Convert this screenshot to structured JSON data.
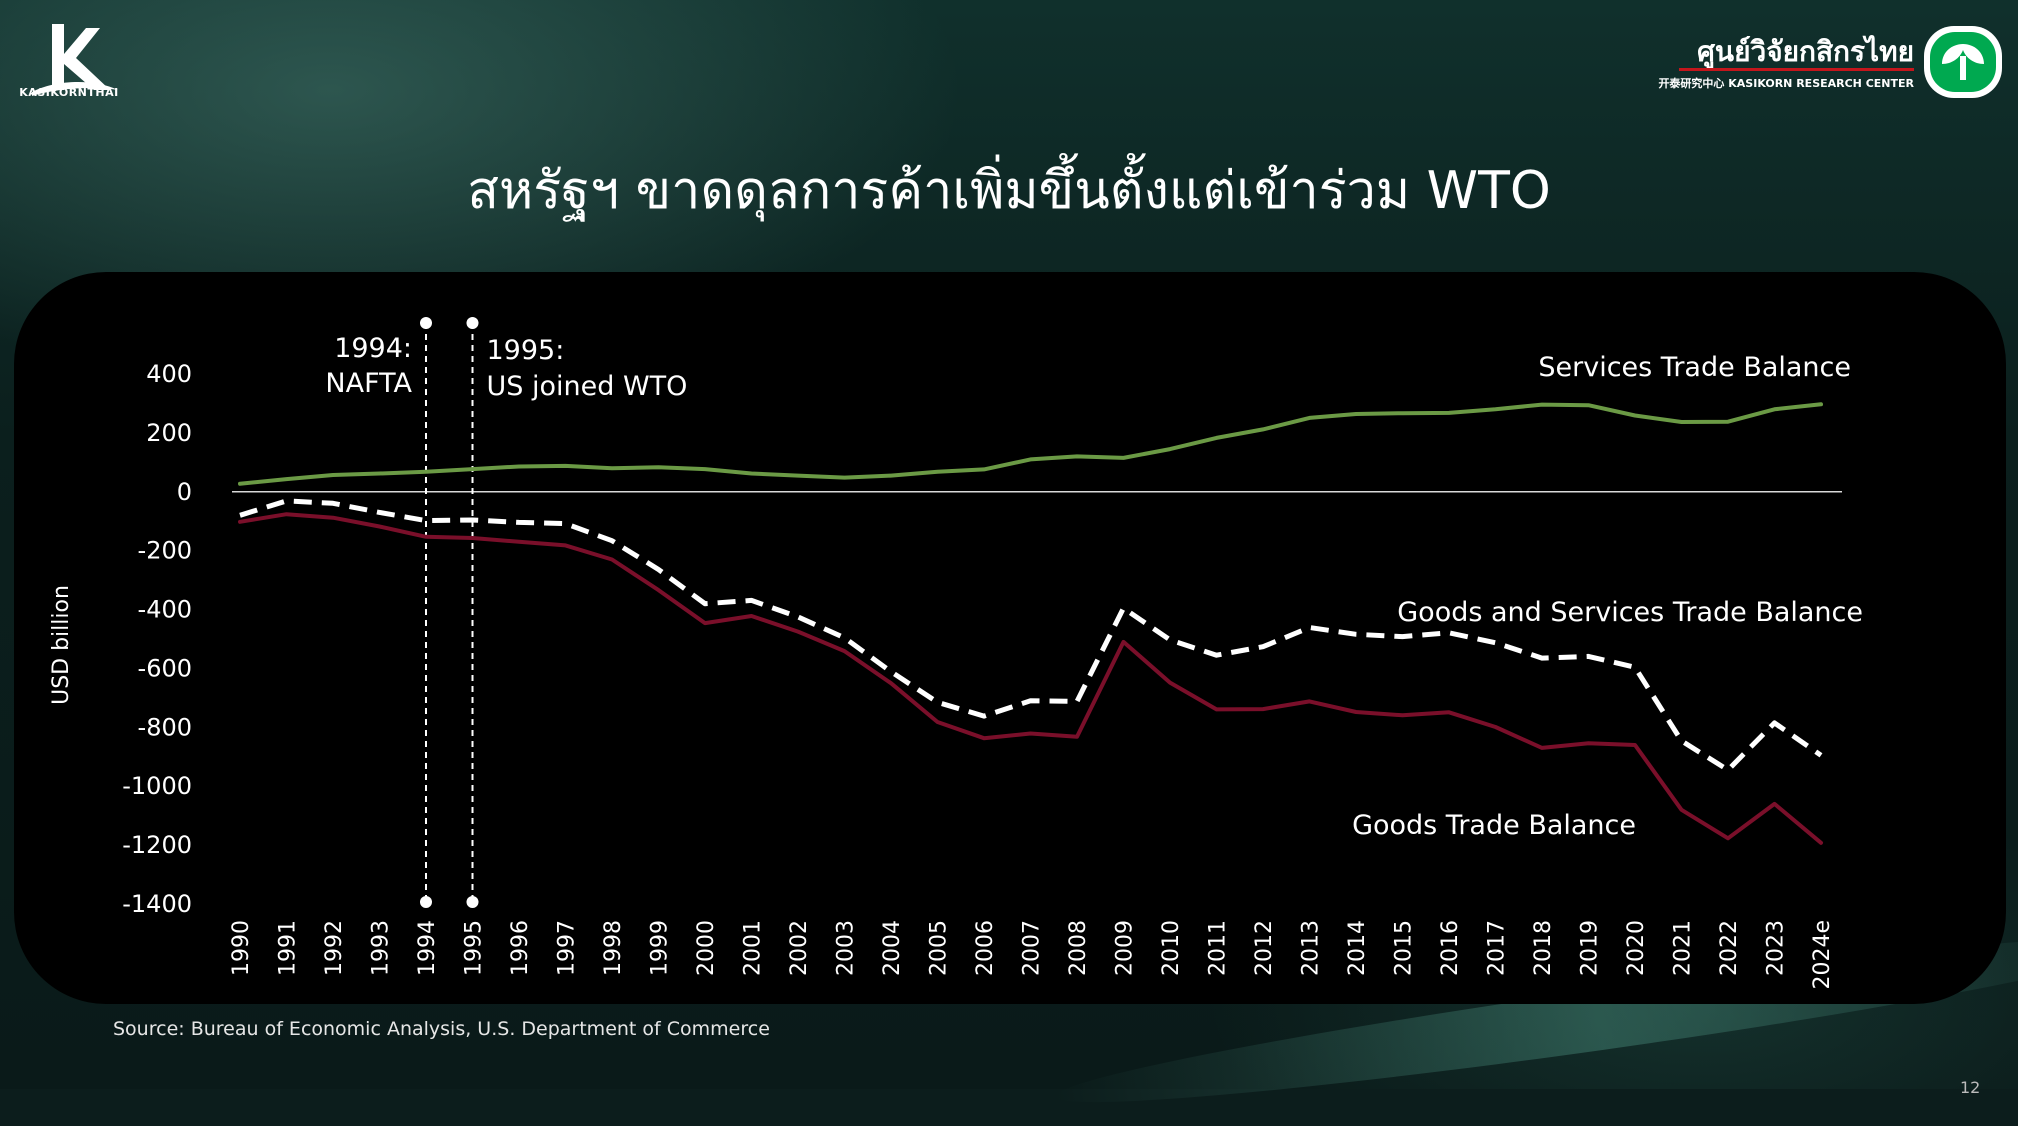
{
  "title": "สหรัฐฯ ขาดดุลการค้าเพิ่มขึ้นตั้งแต่เข้าร่วม WTO",
  "logo_left": {
    "text": "KASIKORNTHAI",
    "icon": "k-logo-icon"
  },
  "logo_right": {
    "thai": "ศูนย์วิจัยกสิกรไทย",
    "sub": "开泰研究中心 KASIKORN RESEARCH CENTER",
    "icon": "kasikorn-leaf-icon",
    "accent": "#c4161c",
    "mark_color": "#00a950"
  },
  "source": "Source: Bureau of Economic Analysis, U.S. Department of Commerce",
  "page_number": "12",
  "chart_data": {
    "type": "line",
    "ylabel": "USD billion",
    "ylim": [
      -1400,
      400
    ],
    "yticks": [
      400,
      200,
      0,
      -200,
      -400,
      -600,
      -800,
      -1000,
      -1200,
      -1400
    ],
    "x": [
      "1990",
      "1991",
      "1992",
      "1993",
      "1994",
      "1995",
      "1996",
      "1997",
      "1998",
      "1999",
      "2000",
      "2001",
      "2002",
      "2003",
      "2004",
      "2005",
      "2006",
      "2007",
      "2008",
      "2009",
      "2010",
      "2011",
      "2012",
      "2013",
      "2014",
      "2015",
      "2016",
      "2017",
      "2018",
      "2019",
      "2020",
      "2021",
      "2022",
      "2023",
      "2024e"
    ],
    "series": [
      {
        "name": "Services Trade Balance",
        "color": "#6b9a45",
        "style": "solid",
        "values": [
          27,
          43,
          57,
          62,
          68,
          77,
          86,
          88,
          80,
          83,
          77,
          62,
          55,
          48,
          55,
          68,
          76,
          110,
          120,
          115,
          145,
          183,
          212,
          251,
          264,
          267,
          268,
          280,
          296,
          294,
          259,
          237,
          238,
          280,
          297
        ]
      },
      {
        "name": "Goods and Services Trade Balance",
        "color": "#ffffff",
        "style": "dashed",
        "values": [
          -80,
          -31,
          -39,
          -70,
          -98,
          -96,
          -104,
          -108,
          -166,
          -264,
          -380,
          -369,
          -425,
          -496,
          -611,
          -715,
          -762,
          -710,
          -712,
          -395,
          -503,
          -555,
          -526,
          -461,
          -484,
          -492,
          -479,
          -513,
          -565,
          -559,
          -596,
          -846,
          -945,
          -785,
          -895
        ]
      },
      {
        "name": "Goods Trade Balance",
        "color": "#7a0f2a",
        "style": "solid",
        "values": [
          -102,
          -76,
          -88,
          -118,
          -153,
          -157,
          -170,
          -182,
          -230,
          -334,
          -446,
          -422,
          -475,
          -541,
          -650,
          -782,
          -837,
          -821,
          -832,
          -510,
          -648,
          -739,
          -738,
          -712,
          -748,
          -759,
          -749,
          -799,
          -870,
          -854,
          -860,
          -1080,
          -1177,
          -1060,
          -1192
        ]
      }
    ],
    "annotations": [
      {
        "x": "1994",
        "label_line1": "1994:",
        "label_line2": "NAFTA",
        "side": "left"
      },
      {
        "x": "1995",
        "label_line1": "1995:",
        "label_line2": "US joined WTO",
        "side": "right"
      }
    ],
    "zero_line": true,
    "legend": "inline labels"
  }
}
